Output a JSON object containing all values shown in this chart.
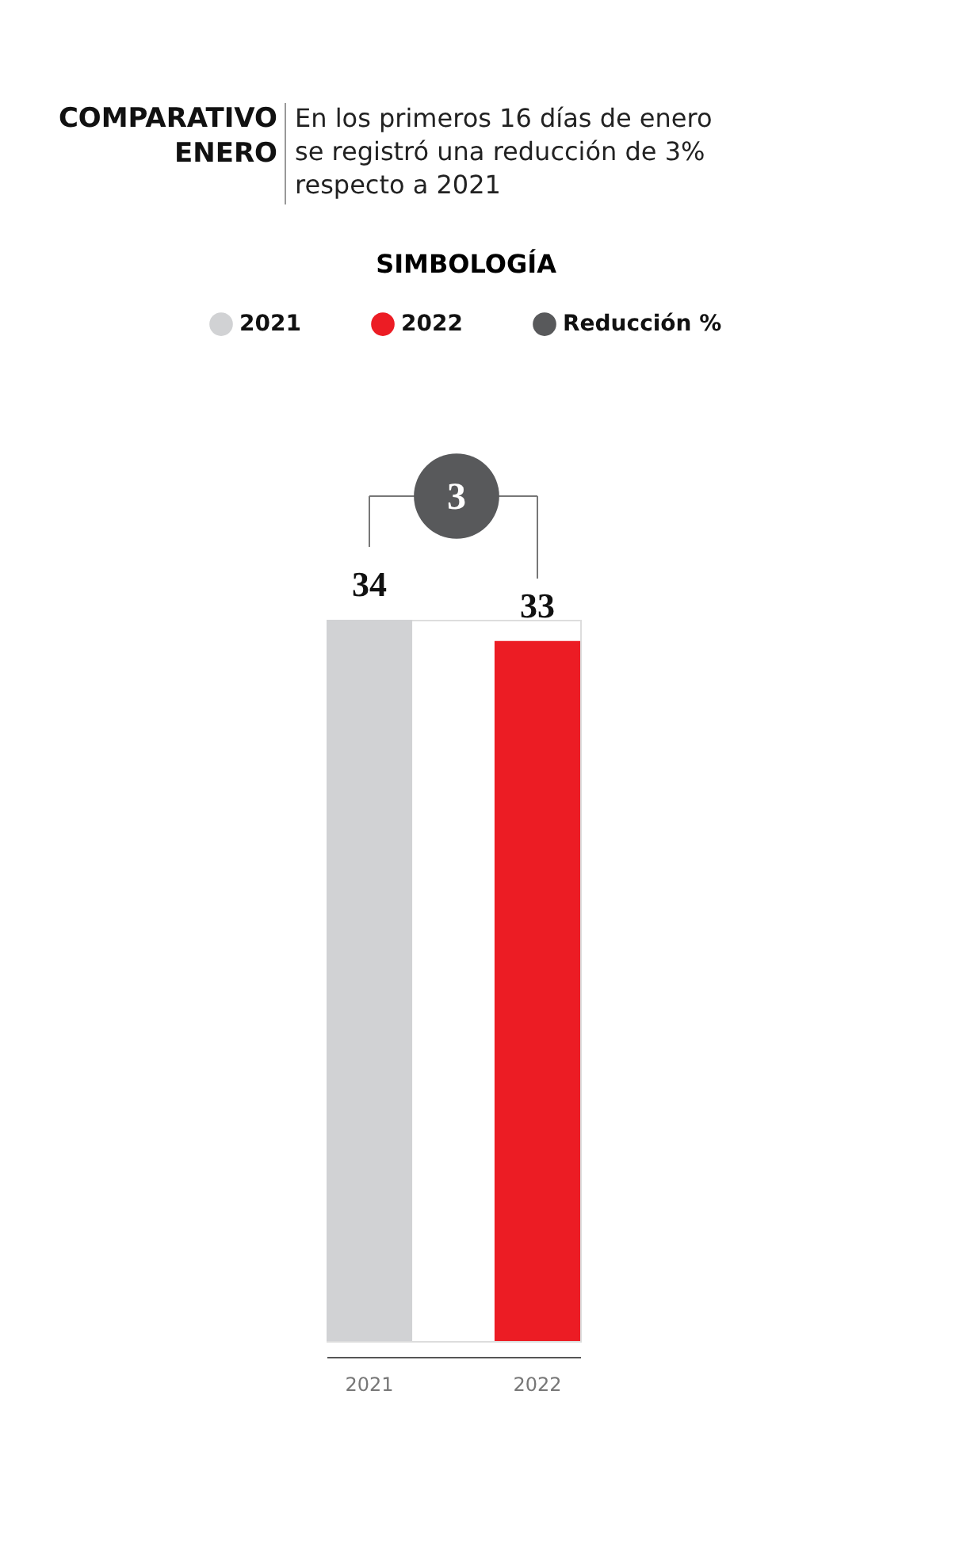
{
  "chart_data": {
    "type": "bar",
    "title": "COMPARATIVO ENERO",
    "subtitle": "En los primeros 16 días de enero se registró una reducción de 3% respecto a 2021",
    "legend_title": "SIMBOLOGÍA",
    "categories": [
      "2021",
      "2022"
    ],
    "series": [
      {
        "name": "2021",
        "color": "#d1d2d4",
        "values": [
          34,
          null
        ]
      },
      {
        "name": "2022",
        "color": "#ec1c24",
        "values": [
          null,
          33
        ]
      },
      {
        "name": "Reducción %",
        "color": "#58595b",
        "values": [
          null,
          null
        ]
      }
    ],
    "annotations": [
      "3"
    ],
    "data_labels": true,
    "grid": false,
    "legend": "top"
  }
}
